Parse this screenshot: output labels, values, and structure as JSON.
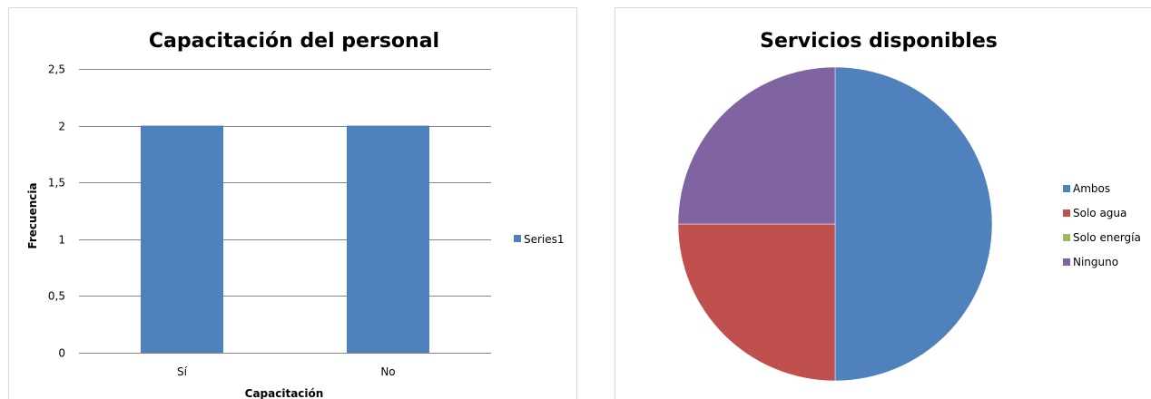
{
  "chart_data": [
    {
      "type": "bar",
      "title": "Capacitación del personal",
      "xlabel": "Capacitación",
      "ylabel": "Frecuencia",
      "categories": [
        "Sí",
        "No"
      ],
      "series": [
        {
          "name": "Series1",
          "values": [
            2,
            2
          ]
        }
      ],
      "ylim": [
        0,
        2.5
      ],
      "yticks": [
        "0",
        "0,5",
        "1",
        "1,5",
        "2",
        "2,5"
      ],
      "grid": true,
      "legend": "right",
      "color": "#4f81bd"
    },
    {
      "type": "pie",
      "title": "Servicios disponibles",
      "labels": [
        "Ambos",
        "Solo agua",
        "Solo energía",
        "Ninguno"
      ],
      "values": [
        2,
        1,
        0,
        1
      ],
      "colors": [
        "#4f81bd",
        "#c0504d",
        "#9bbb59",
        "#8064a2"
      ],
      "legend": "right"
    }
  ]
}
